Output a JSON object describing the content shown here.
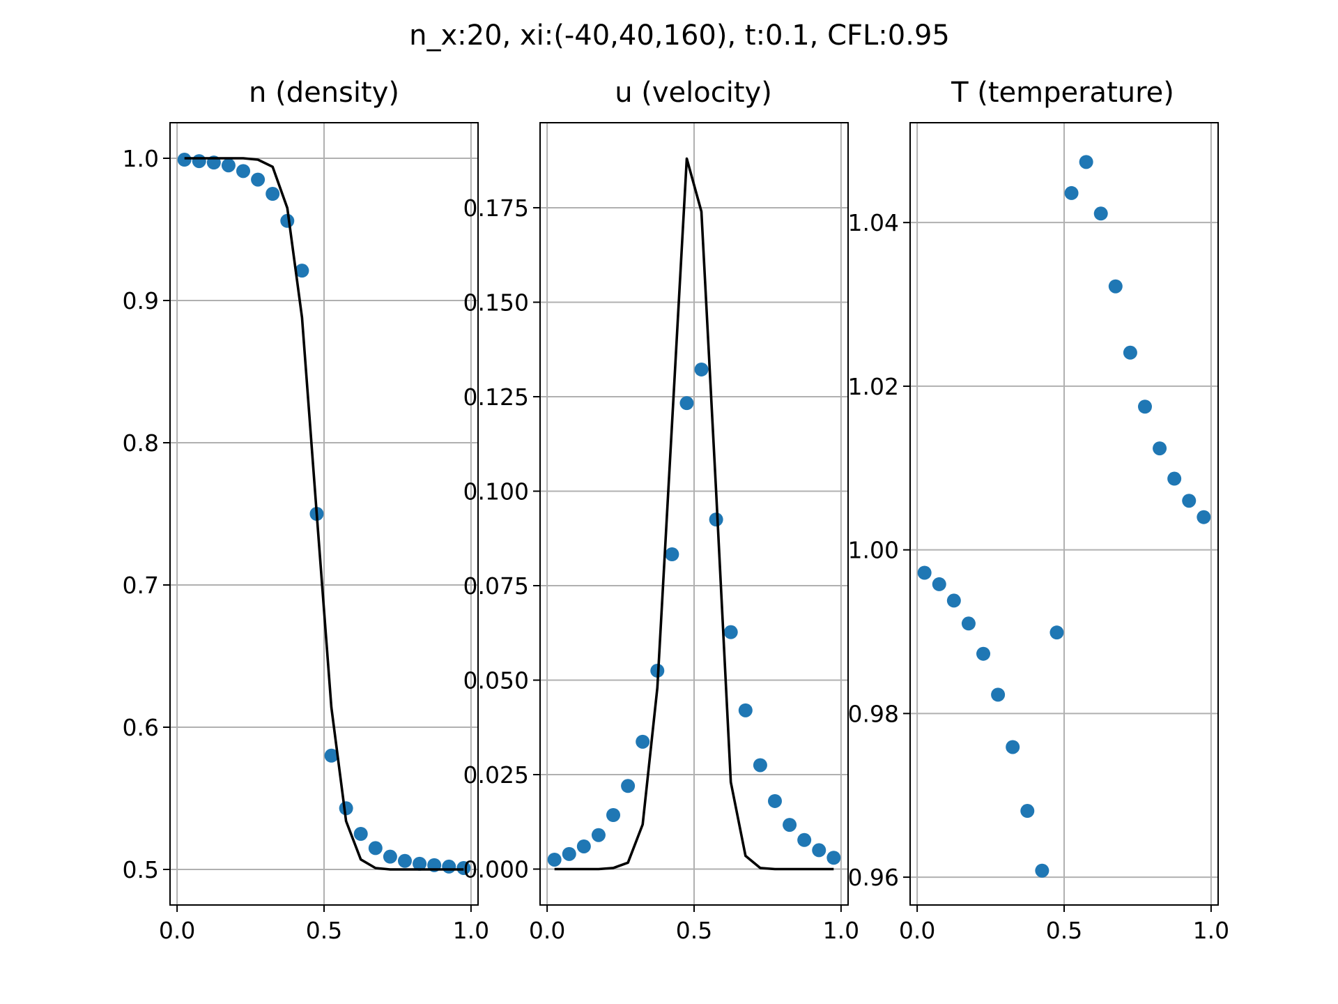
{
  "figure": {
    "suptitle": "n_x:20, xi:(-40,40,160), t:0.1, CFL:0.95"
  },
  "colors": {
    "markers": "#1f77b4",
    "line": "#000000",
    "grid": "#b0b0b0"
  },
  "chart_data": [
    {
      "type": "scatter",
      "title": "n (density)",
      "xlabel": "",
      "ylabel": "",
      "xlim": [
        -0.024,
        1.024
      ],
      "ylim": [
        0.475,
        1.025
      ],
      "grid": true,
      "xticks": [
        0.0,
        0.5,
        1.0
      ],
      "xtick_labels": [
        "0.0",
        "0.5",
        "1.0"
      ],
      "yticks": [
        0.5,
        0.6,
        0.7,
        0.8,
        0.9,
        1.0
      ],
      "ytick_labels": [
        "0.5",
        "0.6",
        "0.7",
        "0.8",
        "0.9",
        "1.0"
      ],
      "series": [
        {
          "kind": "scatter",
          "x": [
            0.025,
            0.075,
            0.125,
            0.175,
            0.225,
            0.275,
            0.325,
            0.375,
            0.425,
            0.475,
            0.525,
            0.575,
            0.625,
            0.675,
            0.725,
            0.775,
            0.825,
            0.875,
            0.925,
            0.975
          ],
          "y": [
            0.999,
            0.998,
            0.997,
            0.995,
            0.991,
            0.985,
            0.975,
            0.956,
            0.921,
            0.75,
            0.58,
            0.543,
            0.525,
            0.515,
            0.509,
            0.506,
            0.504,
            0.503,
            0.502,
            0.501
          ]
        },
        {
          "kind": "line",
          "x": [
            0.025,
            0.075,
            0.125,
            0.175,
            0.225,
            0.275,
            0.325,
            0.375,
            0.425,
            0.475,
            0.525,
            0.575,
            0.625,
            0.675,
            0.725,
            0.775,
            0.825,
            0.875,
            0.925,
            0.975
          ],
          "y": [
            1.0,
            1.0,
            1.0,
            1.0,
            1.0,
            0.999,
            0.994,
            0.965,
            0.888,
            0.75,
            0.614,
            0.534,
            0.507,
            0.501,
            0.5,
            0.5,
            0.5,
            0.5,
            0.5,
            0.5
          ]
        }
      ]
    },
    {
      "type": "scatter",
      "title": "u (velocity)",
      "xlabel": "",
      "ylabel": "",
      "xlim": [
        -0.024,
        1.024
      ],
      "ylim": [
        -0.0095,
        0.1975
      ],
      "grid": true,
      "xticks": [
        0.0,
        0.5,
        1.0
      ],
      "xtick_labels": [
        "0.0",
        "0.5",
        "1.0"
      ],
      "yticks": [
        0.0,
        0.025,
        0.05,
        0.075,
        0.1,
        0.125,
        0.15,
        0.175
      ],
      "ytick_labels": [
        "0.000",
        "0.025",
        "0.050",
        "0.075",
        "0.100",
        "0.125",
        "0.150",
        "0.175"
      ],
      "series": [
        {
          "kind": "scatter",
          "x": [
            0.025,
            0.075,
            0.125,
            0.175,
            0.225,
            0.275,
            0.325,
            0.375,
            0.425,
            0.475,
            0.525,
            0.575,
            0.625,
            0.675,
            0.725,
            0.775,
            0.825,
            0.875,
            0.925,
            0.975
          ],
          "y": [
            0.0025,
            0.004,
            0.006,
            0.009,
            0.0143,
            0.022,
            0.0337,
            0.0525,
            0.0833,
            0.1233,
            0.1322,
            0.0925,
            0.0627,
            0.042,
            0.0275,
            0.018,
            0.0117,
            0.0077,
            0.005,
            0.003
          ]
        },
        {
          "kind": "line",
          "x": [
            0.025,
            0.075,
            0.125,
            0.175,
            0.225,
            0.275,
            0.325,
            0.375,
            0.425,
            0.475,
            0.525,
            0.575,
            0.625,
            0.675,
            0.725,
            0.775,
            0.825,
            0.875,
            0.925,
            0.975
          ],
          "y": [
            0.0,
            0.0,
            0.0,
            0.0,
            0.0003,
            0.0017,
            0.0118,
            0.048,
            0.118,
            0.188,
            0.174,
            0.1,
            0.023,
            0.0035,
            0.0003,
            0.0,
            0.0,
            0.0,
            0.0,
            0.0
          ]
        }
      ]
    },
    {
      "type": "scatter",
      "title": "T (temperature)",
      "xlabel": "",
      "ylabel": "",
      "xlim": [
        -0.024,
        1.024
      ],
      "ylim": [
        0.9566,
        1.0522
      ],
      "grid": true,
      "xticks": [
        0.0,
        0.5,
        1.0
      ],
      "xtick_labels": [
        "0.0",
        "0.5",
        "1.0"
      ],
      "yticks": [
        0.96,
        0.98,
        1.0,
        1.02,
        1.04
      ],
      "ytick_labels": [
        "0.96",
        "0.98",
        "1.00",
        "1.02",
        "1.04"
      ],
      "series": [
        {
          "kind": "scatter",
          "x": [
            0.025,
            0.075,
            0.125,
            0.175,
            0.225,
            0.275,
            0.325,
            0.375,
            0.425,
            0.475,
            0.525,
            0.575,
            0.625,
            0.675,
            0.725,
            0.775,
            0.825,
            0.875,
            0.925,
            0.975
          ],
          "y": [
            0.9972,
            0.9958,
            0.9938,
            0.991,
            0.9873,
            0.9823,
            0.9759,
            0.9681,
            0.9608,
            0.9899,
            1.0436,
            1.0474,
            1.0411,
            1.0322,
            1.0241,
            1.0175,
            1.0124,
            1.0087,
            1.006,
            1.004
          ]
        }
      ]
    }
  ]
}
